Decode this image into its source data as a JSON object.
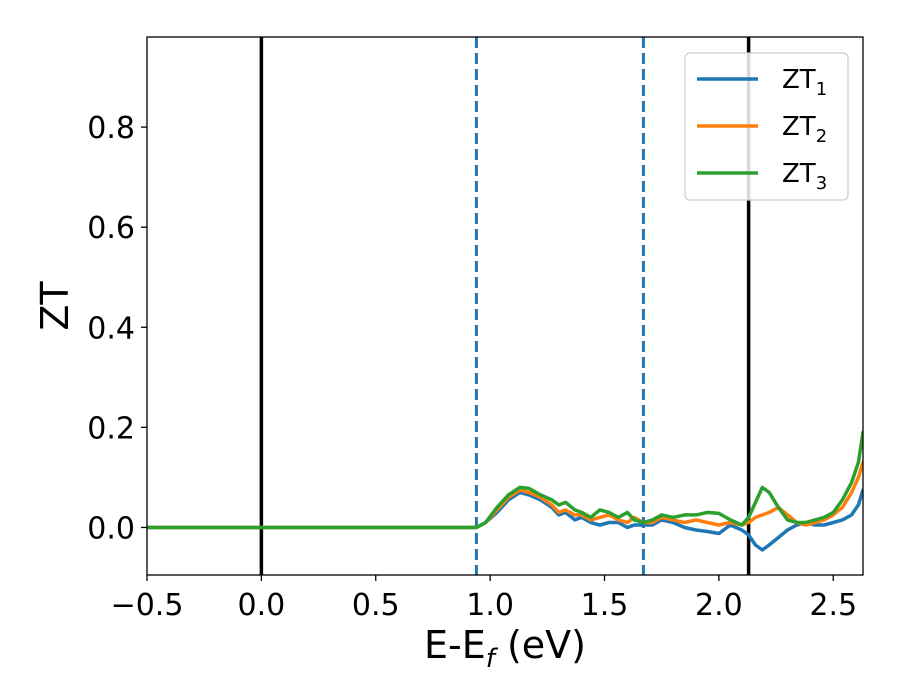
{
  "chart_data": {
    "type": "line",
    "xlabel": "E-E",
    "xlabel_sub": "f",
    "xlabel_unit": " (eV)",
    "ylabel": "ZT",
    "xlim": [
      -0.5,
      2.63
    ],
    "ylim": [
      -0.095,
      0.98
    ],
    "xticks": [
      -0.5,
      0.0,
      0.5,
      1.0,
      1.5,
      2.0,
      2.5
    ],
    "xtick_labels": [
      "−0.5",
      "0.0",
      "0.5",
      "1.0",
      "1.5",
      "2.0",
      "2.5"
    ],
    "yticks": [
      0.0,
      0.2,
      0.4,
      0.6,
      0.8
    ],
    "ytick_labels": [
      "0.0",
      "0.2",
      "0.4",
      "0.6",
      "0.8"
    ],
    "grid": false,
    "legend_position": "top-right",
    "vlines": [
      {
        "x": 0.0,
        "style": "solid",
        "color": "#000000"
      },
      {
        "x": 2.13,
        "style": "solid",
        "color": "#000000"
      },
      {
        "x": 0.94,
        "style": "dashed",
        "color": "#1f77b4"
      },
      {
        "x": 1.67,
        "style": "dashed",
        "color": "#1f77b4"
      }
    ],
    "series": [
      {
        "name": "ZT",
        "sub": "1",
        "color": "#1f77b4",
        "x": [
          -0.5,
          0.94,
          0.98,
          1.03,
          1.08,
          1.13,
          1.17,
          1.22,
          1.27,
          1.3,
          1.33,
          1.37,
          1.4,
          1.44,
          1.48,
          1.52,
          1.56,
          1.6,
          1.63,
          1.67,
          1.71,
          1.75,
          1.8,
          1.85,
          1.9,
          1.95,
          2.0,
          2.05,
          2.1,
          2.13,
          2.16,
          2.19,
          2.22,
          2.26,
          2.3,
          2.34,
          2.38,
          2.42,
          2.46,
          2.5,
          2.54,
          2.58,
          2.61,
          2.63
        ],
        "y": [
          0.0,
          0.0,
          0.01,
          0.03,
          0.055,
          0.07,
          0.065,
          0.055,
          0.04,
          0.025,
          0.03,
          0.015,
          0.02,
          0.01,
          0.005,
          0.01,
          0.01,
          0.0,
          0.005,
          0.005,
          0.005,
          0.015,
          0.01,
          0.0,
          -0.005,
          -0.008,
          -0.012,
          0.005,
          -0.005,
          -0.015,
          -0.035,
          -0.045,
          -0.035,
          -0.02,
          -0.005,
          0.005,
          0.01,
          0.005,
          0.005,
          0.01,
          0.015,
          0.025,
          0.045,
          0.075
        ]
      },
      {
        "name": "ZT",
        "sub": "2",
        "color": "#ff7f0e",
        "x": [
          -0.5,
          0.94,
          0.98,
          1.03,
          1.08,
          1.13,
          1.17,
          1.22,
          1.27,
          1.3,
          1.33,
          1.37,
          1.4,
          1.44,
          1.48,
          1.52,
          1.56,
          1.6,
          1.63,
          1.67,
          1.71,
          1.75,
          1.8,
          1.85,
          1.9,
          1.95,
          2.0,
          2.05,
          2.1,
          2.13,
          2.16,
          2.19,
          2.22,
          2.26,
          2.3,
          2.34,
          2.38,
          2.42,
          2.46,
          2.5,
          2.54,
          2.58,
          2.61,
          2.63
        ],
        "y": [
          0.0,
          0.0,
          0.01,
          0.035,
          0.06,
          0.075,
          0.07,
          0.06,
          0.045,
          0.03,
          0.035,
          0.025,
          0.025,
          0.015,
          0.02,
          0.025,
          0.015,
          0.01,
          0.02,
          0.01,
          0.01,
          0.02,
          0.015,
          0.01,
          0.015,
          0.01,
          0.005,
          0.01,
          0.005,
          0.01,
          0.02,
          0.025,
          0.03,
          0.04,
          0.025,
          0.01,
          0.005,
          0.01,
          0.015,
          0.025,
          0.04,
          0.07,
          0.1,
          0.13
        ]
      },
      {
        "name": "ZT",
        "sub": "3",
        "color": "#2ca02c",
        "x": [
          -0.5,
          0.94,
          0.98,
          1.03,
          1.08,
          1.13,
          1.17,
          1.22,
          1.27,
          1.3,
          1.33,
          1.37,
          1.4,
          1.44,
          1.48,
          1.52,
          1.56,
          1.6,
          1.63,
          1.67,
          1.71,
          1.75,
          1.8,
          1.85,
          1.9,
          1.95,
          2.0,
          2.05,
          2.1,
          2.13,
          2.16,
          2.19,
          2.22,
          2.26,
          2.3,
          2.34,
          2.38,
          2.42,
          2.46,
          2.5,
          2.54,
          2.58,
          2.61,
          2.63
        ],
        "y": [
          0.0,
          0.0,
          0.01,
          0.04,
          0.065,
          0.08,
          0.078,
          0.065,
          0.055,
          0.045,
          0.05,
          0.035,
          0.03,
          0.02,
          0.035,
          0.03,
          0.02,
          0.03,
          0.015,
          0.01,
          0.015,
          0.025,
          0.02,
          0.025,
          0.025,
          0.03,
          0.028,
          0.015,
          0.005,
          0.02,
          0.05,
          0.08,
          0.07,
          0.04,
          0.015,
          0.01,
          0.01,
          0.015,
          0.02,
          0.03,
          0.055,
          0.09,
          0.13,
          0.19
        ]
      }
    ]
  }
}
